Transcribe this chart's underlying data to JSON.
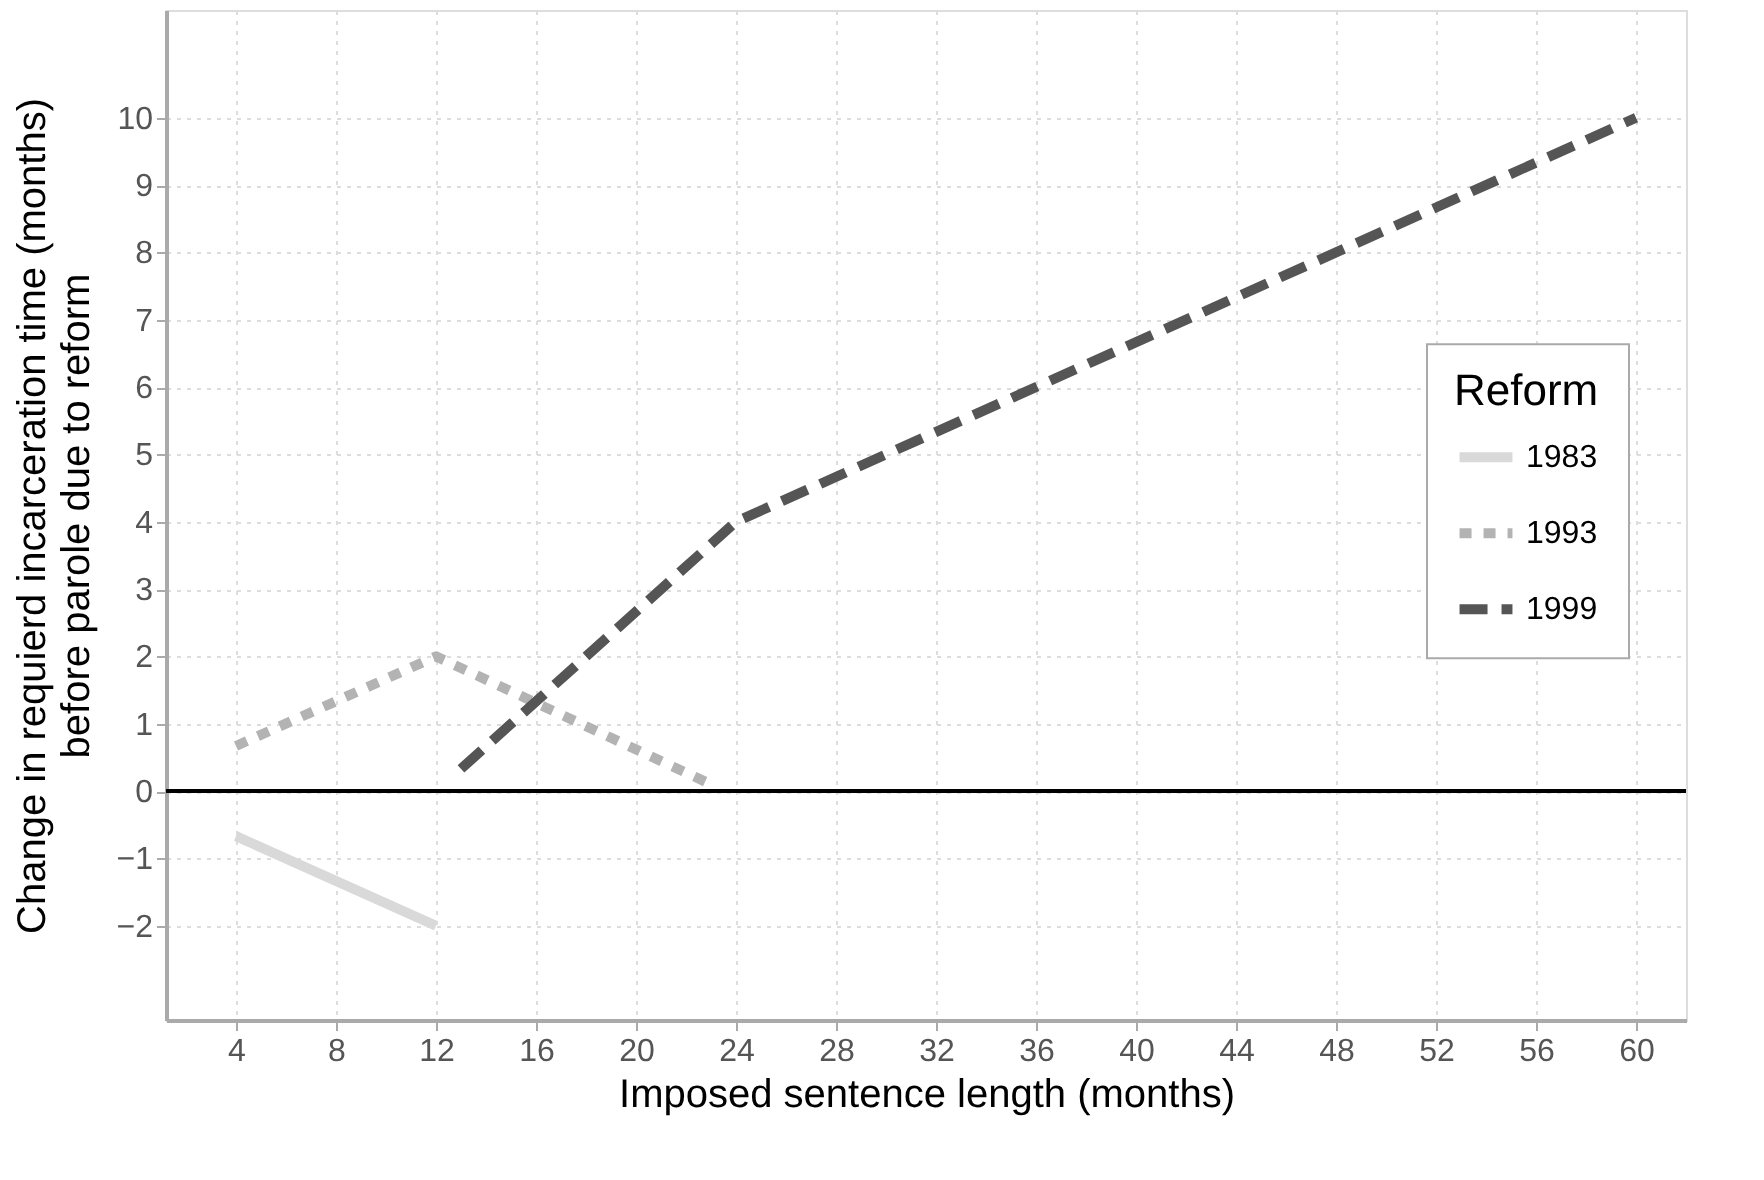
{
  "chart_data": {
    "type": "line",
    "xlabel": "Imposed sentence length (months)",
    "ylabel": "Change in requierd incarceration time (months)\nbefore parole due to reform",
    "legend_title": "Reform",
    "series": [
      {
        "name": "1983",
        "color": "#d9d9d9",
        "line_style": "solid",
        "x": [
          4,
          12
        ],
        "values": [
          -0.67,
          -2
        ]
      },
      {
        "name": "1993",
        "color": "#b3b3b3",
        "line_style": "dotted",
        "x": [
          4,
          12,
          23
        ],
        "values": [
          0.67,
          2,
          0.1
        ]
      },
      {
        "name": "1999",
        "color": "#555555",
        "line_style": "dashed",
        "x": [
          13,
          24,
          60
        ],
        "values": [
          0.33,
          4,
          10
        ]
      }
    ],
    "xlim": [
      1.2,
      62
    ],
    "xticks": [
      4,
      8,
      12,
      16,
      20,
      24,
      28,
      32,
      36,
      40,
      44,
      48,
      52,
      56,
      60
    ],
    "ylim": [
      -3.4,
      11.6
    ],
    "yticks": [
      -2,
      -1,
      0,
      1,
      2,
      3,
      4,
      5,
      6,
      7,
      8,
      9,
      10
    ],
    "ref_lines": [
      {
        "axis": "y",
        "value": 0,
        "color": "#000000"
      }
    ],
    "grid": true,
    "legend": "right",
    "marker": "none"
  }
}
